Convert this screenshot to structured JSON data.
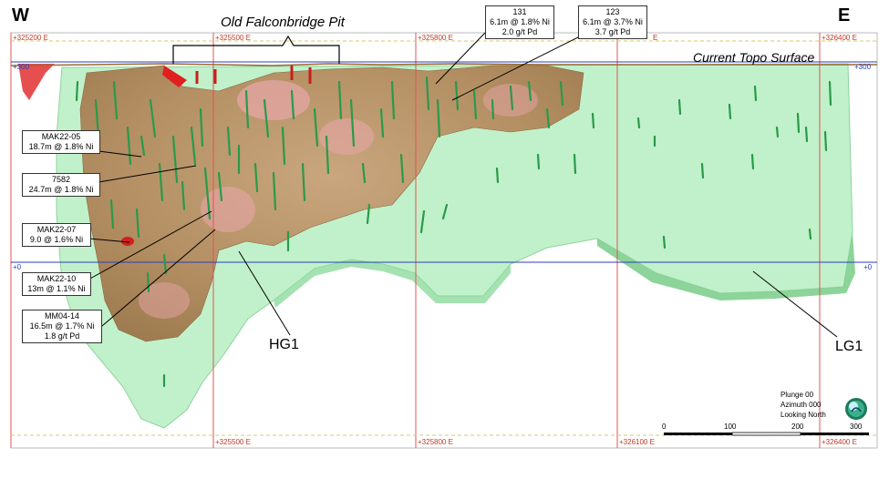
{
  "direction": {
    "west": "W",
    "east": "E"
  },
  "pit_label": "Old Falconbridge Pit",
  "topo_label": "Current Topo Surface",
  "eastings_top": [
    "+325200 E",
    "+325500 E",
    "+325800 E",
    "E",
    "+326400 E"
  ],
  "eastings_bottom": [
    "+325500 E",
    "+325800 E",
    "+326100 E",
    "+326400 E"
  ],
  "elevations": {
    "top_left": "+300",
    "top_right": "+300",
    "zero_left": "+0",
    "zero_right": "+0"
  },
  "callouts": [
    {
      "id": "131",
      "lines": [
        "131",
        "6.1m @ 1.8% Ni",
        "2.0 g/t Pd"
      ]
    },
    {
      "id": "123",
      "lines": [
        "123",
        "6.1m @ 3.7% Ni",
        "3.7 g/t Pd"
      ]
    },
    {
      "id": "MAK22-05",
      "lines": [
        "MAK22-05",
        "18.7m @ 1.8% Ni"
      ]
    },
    {
      "id": "7582",
      "lines": [
        "7582",
        "24.7m @ 1.8% Ni"
      ]
    },
    {
      "id": "MAK22-07",
      "lines": [
        "MAK22-07",
        "9.0 @ 1.6% Ni"
      ]
    },
    {
      "id": "MAK22-10",
      "lines": [
        "MAK22-10",
        "13m @ 1.1% Ni"
      ]
    },
    {
      "id": "MM04-14",
      "lines": [
        "MM04-14",
        "16.5m @ 1.7% Ni",
        "1.8 g/t Pd"
      ]
    }
  ],
  "zones": {
    "hg": "HG1",
    "lg": "LG1"
  },
  "view": {
    "plunge": "Plunge 00",
    "azimuth": "Azimuth 000",
    "looking": "Looking North"
  },
  "scale_bar": {
    "ticks": [
      "0",
      "100",
      "200",
      "300"
    ]
  },
  "colors": {
    "lg_shell": "#b9f0c4",
    "hg_shell": "#b08a5e",
    "hg_pink": "#e6a6a6",
    "grid_red": "#e05555",
    "grid_blue": "#2a3fbf",
    "drill_green": "#2a9a4a"
  }
}
